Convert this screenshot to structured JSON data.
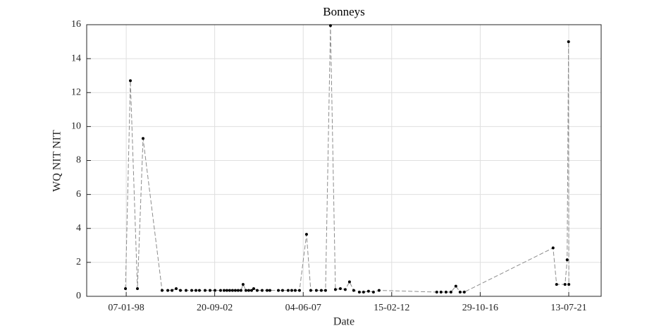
{
  "chart_data": {
    "type": "line",
    "title": "Bonneys",
    "x_label": "Date",
    "y_label": "WQ NIT NIT",
    "x": [
      "1997-12-24",
      "1998-03-29",
      "1998-08-13",
      "1998-11-30",
      "1999-12-04",
      "2000-03-24",
      "2000-06-14",
      "2000-09-03",
      "2000-11-24",
      "2001-03-13",
      "2001-07-01",
      "2001-09-21",
      "2001-11-28",
      "2002-03-17",
      "2002-06-21",
      "2002-09-25",
      "2003-01-12",
      "2003-03-21",
      "2003-05-15",
      "2003-07-08",
      "2003-09-01",
      "2003-10-26",
      "2003-12-19",
      "2004-02-12",
      "2004-03-24",
      "2004-05-18",
      "2004-07-12",
      "2004-09-05",
      "2004-10-16",
      "2004-12-23",
      "2005-03-29",
      "2005-07-03",
      "2005-08-26",
      "2006-02-07",
      "2006-04-29",
      "2006-08-16",
      "2006-10-24",
      "2006-12-31",
      "2007-03-24",
      "2007-08-07",
      "2007-10-28",
      "2008-02-14",
      "2008-05-20",
      "2008-08-10",
      "2008-11-14",
      "2009-02-18",
      "2009-05-25",
      "2009-08-28",
      "2009-11-18",
      "2010-02-08",
      "2010-05-28",
      "2010-08-18",
      "2010-11-22",
      "2011-02-26",
      "2011-06-15",
      "2014-07-09",
      "2014-09-29",
      "2015-01-04",
      "2015-04-10",
      "2015-07-14",
      "2015-10-04",
      "2015-12-25",
      "2020-09-12",
      "2020-11-19",
      "2021-05-02",
      "2021-06-12",
      "2021-07-09",
      "2021-07-15"
    ],
    "values": [
      0.45,
      12.7,
      0.45,
      9.3,
      0.35,
      0.35,
      0.35,
      0.45,
      0.35,
      0.35,
      0.35,
      0.35,
      0.35,
      0.35,
      0.35,
      0.35,
      0.35,
      0.35,
      0.35,
      0.35,
      0.35,
      0.35,
      0.35,
      0.35,
      0.7,
      0.35,
      0.35,
      0.35,
      0.45,
      0.35,
      0.35,
      0.35,
      0.35,
      0.35,
      0.35,
      0.35,
      0.35,
      0.35,
      0.35,
      3.65,
      0.35,
      0.35,
      0.35,
      0.35,
      15.95,
      0.4,
      0.45,
      0.4,
      0.85,
      0.35,
      0.25,
      0.25,
      0.3,
      0.25,
      0.35,
      0.25,
      0.25,
      0.25,
      0.25,
      0.6,
      0.25,
      0.25,
      2.85,
      0.7,
      0.7,
      2.15,
      15.0,
      0.7
    ],
    "color": "#8c8c8c",
    "marker_color": "#000000",
    "xlim": [
      "1995-12-02",
      "2023-04-03"
    ],
    "xticks": [
      {
        "value": "1998-01-07",
        "label": "07-01-98"
      },
      {
        "value": "2002-09-20",
        "label": "20-09-02"
      },
      {
        "value": "2007-06-04",
        "label": "04-06-07"
      },
      {
        "value": "2012-02-15",
        "label": "15-02-12"
      },
      {
        "value": "2016-10-29",
        "label": "29-10-16"
      },
      {
        "value": "2021-07-13",
        "label": "13-07-21"
      }
    ],
    "ylim": [
      0,
      16
    ],
    "yticks": [
      0,
      2,
      4,
      6,
      8,
      10,
      12,
      14,
      16
    ],
    "grid": true
  }
}
